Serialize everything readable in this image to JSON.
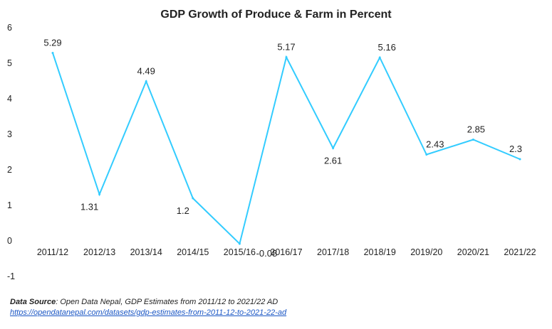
{
  "chart_data": {
    "type": "line",
    "title": "GDP Growth of Produce & Farm in Percent",
    "categories": [
      "2011/12",
      "2012/13",
      "2013/14",
      "2014/15",
      "2015/16",
      "2016/17",
      "2017/18",
      "2018/19",
      "2019/20",
      "2020/21",
      "2021/22"
    ],
    "series": [
      {
        "values": [
          5.29,
          1.31,
          4.49,
          1.2,
          -0.08,
          5.17,
          2.61,
          5.16,
          2.43,
          2.85,
          2.3
        ],
        "labels": [
          "5.29",
          "1.31",
          "4.49",
          "1.2",
          "-0.08",
          "5.17",
          "2.61",
          "5.16",
          "2.43",
          "2.85",
          "2.3"
        ],
        "color": "#33ccff"
      }
    ],
    "yticks": [
      "6",
      "5",
      "4",
      "3",
      "2",
      "1",
      "0",
      "-1"
    ],
    "ylim": [
      -1,
      6
    ],
    "grid": false,
    "legend": "none"
  },
  "source": {
    "label": "Data Source",
    "text": ": Open Data Nepal,  GDP Estimates from 2011/12 to 2021/22 AD",
    "link": "https://opendatanepal.com/datasets/gdp-estimates-from-2011-12-to-2021-22-ad"
  }
}
